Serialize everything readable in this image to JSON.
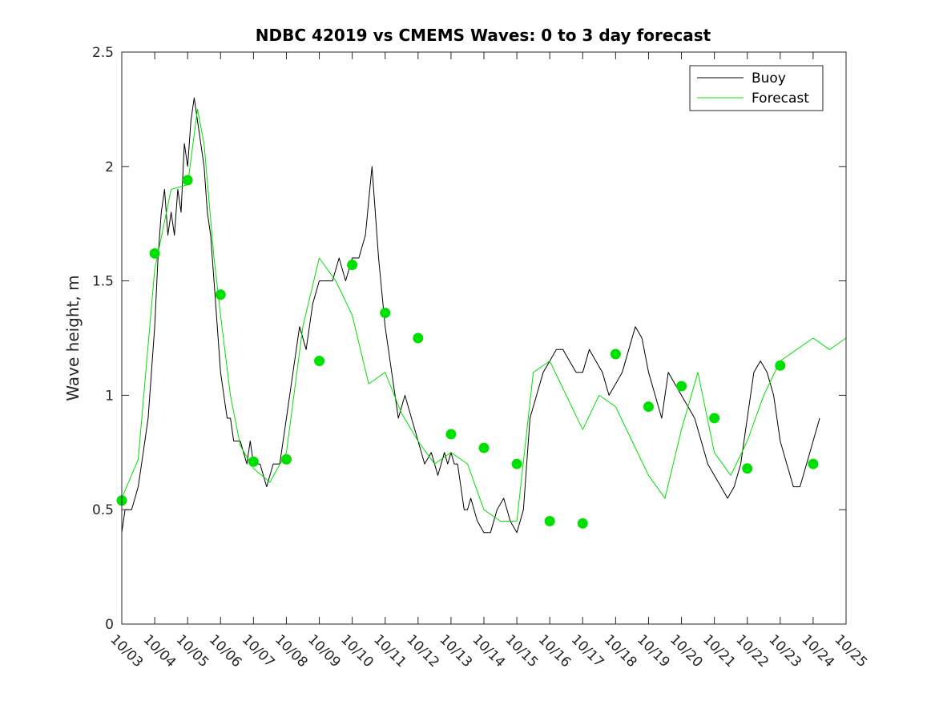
{
  "chart_data": {
    "type": "line",
    "title": "NDBC 42019 vs CMEMS Waves: 0 to 3 day forecast",
    "xlabel": "",
    "ylabel": "Wave height, m",
    "x_tick_labels": [
      "10/03",
      "10/04",
      "10/05",
      "10/06",
      "10/07",
      "10/08",
      "10/09",
      "10/10",
      "10/11",
      "10/12",
      "10/13",
      "10/14",
      "10/15",
      "10/16",
      "10/17",
      "10/18",
      "10/19",
      "10/20",
      "10/21",
      "10/22",
      "10/23",
      "10/24",
      "10/25"
    ],
    "xlim": [
      0,
      22
    ],
    "ylim": [
      0,
      2.5
    ],
    "y_ticks": [
      0,
      0.5,
      1,
      1.5,
      2,
      2.5
    ],
    "y_tick_labels": [
      "0",
      "0.5",
      "1",
      "1.5",
      "2",
      "2.5"
    ],
    "grid": false,
    "legend_placement": "top-right",
    "series": [
      {
        "name": "Buoy",
        "color": "#000000",
        "x": [
          0,
          0.1,
          0.2,
          0.3,
          0.5,
          0.6,
          0.7,
          0.8,
          0.9,
          1.0,
          1.1,
          1.2,
          1.3,
          1.4,
          1.5,
          1.6,
          1.7,
          1.8,
          1.9,
          2.0,
          2.1,
          2.2,
          2.3,
          2.4,
          2.5,
          2.6,
          2.7,
          2.8,
          2.9,
          3.0,
          3.1,
          3.2,
          3.3,
          3.4,
          3.5,
          3.6,
          3.7,
          3.8,
          3.9,
          4.0,
          4.2,
          4.4,
          4.6,
          4.8,
          5.0,
          5.2,
          5.4,
          5.6,
          5.8,
          6.0,
          6.2,
          6.4,
          6.6,
          6.8,
          7.0,
          7.2,
          7.4,
          7.6,
          7.8,
          8.0,
          8.2,
          8.4,
          8.6,
          8.8,
          9.0,
          9.2,
          9.4,
          9.6,
          9.7,
          9.8,
          9.9,
          10.0,
          10.1,
          10.2,
          10.3,
          10.4,
          10.5,
          10.6,
          10.8,
          11.0,
          11.2,
          11.4,
          11.6,
          11.8,
          12.0,
          12.2,
          12.4,
          12.6,
          12.8,
          13.0,
          13.2,
          13.4,
          13.6,
          13.8,
          14.0,
          14.2,
          14.4,
          14.6,
          14.8,
          15.0,
          15.2,
          15.4,
          15.6,
          15.8,
          16.0,
          16.2,
          16.4,
          16.6,
          16.8,
          17.0,
          17.2,
          17.4,
          17.6,
          17.8,
          18.0,
          18.2,
          18.4,
          18.6,
          18.8,
          19.0,
          19.2,
          19.4,
          19.6,
          19.8,
          20.0,
          20.2,
          20.4,
          20.6,
          20.8,
          21.0,
          21.2
        ],
        "y": [
          0.4,
          0.5,
          0.5,
          0.5,
          0.6,
          0.7,
          0.8,
          0.9,
          1.1,
          1.3,
          1.6,
          1.8,
          1.9,
          1.7,
          1.8,
          1.7,
          1.9,
          1.8,
          2.1,
          2.0,
          2.2,
          2.3,
          2.2,
          2.1,
          2.0,
          1.8,
          1.7,
          1.5,
          1.3,
          1.1,
          1.0,
          0.9,
          0.9,
          0.8,
          0.8,
          0.8,
          0.75,
          0.7,
          0.8,
          0.7,
          0.7,
          0.6,
          0.7,
          0.7,
          0.9,
          1.1,
          1.3,
          1.2,
          1.4,
          1.5,
          1.5,
          1.5,
          1.6,
          1.5,
          1.6,
          1.6,
          1.7,
          2.0,
          1.6,
          1.3,
          1.1,
          0.9,
          1.0,
          0.9,
          0.8,
          0.7,
          0.75,
          0.65,
          0.7,
          0.75,
          0.7,
          0.75,
          0.7,
          0.7,
          0.6,
          0.5,
          0.5,
          0.55,
          0.45,
          0.4,
          0.4,
          0.5,
          0.55,
          0.45,
          0.4,
          0.5,
          0.9,
          1.0,
          1.1,
          1.15,
          1.2,
          1.2,
          1.15,
          1.1,
          1.1,
          1.2,
          1.15,
          1.1,
          1.0,
          1.05,
          1.1,
          1.2,
          1.3,
          1.25,
          1.1,
          1.0,
          0.9,
          1.1,
          1.05,
          1.0,
          0.95,
          0.9,
          0.8,
          0.7,
          0.65,
          0.6,
          0.55,
          0.6,
          0.7,
          0.9,
          1.1,
          1.15,
          1.1,
          1.0,
          0.8,
          0.7,
          0.6,
          0.6,
          0.7,
          0.8,
          0.9
        ]
      },
      {
        "name": "Forecast",
        "color": "#00e000",
        "x": [
          0,
          0.5,
          1.0,
          1.5,
          2.0,
          2.3,
          2.5,
          2.8,
          3.0,
          3.3,
          3.6,
          4.0,
          4.5,
          5.0,
          5.5,
          6.0,
          6.5,
          7.0,
          7.5,
          8.0,
          8.5,
          9.0,
          9.5,
          10.0,
          10.5,
          11.0,
          11.5,
          12.0,
          12.5,
          13.0,
          13.5,
          14.0,
          14.5,
          15.0,
          15.5,
          16.0,
          16.5,
          17.0,
          17.5,
          18.0,
          18.5,
          19.0,
          19.5,
          20.0,
          20.5,
          21.0,
          21.5,
          22.0
        ],
        "y": [
          0.55,
          0.72,
          1.55,
          1.9,
          1.92,
          2.25,
          2.1,
          1.6,
          1.35,
          1.0,
          0.78,
          0.68,
          0.62,
          0.75,
          1.3,
          1.6,
          1.5,
          1.35,
          1.05,
          1.1,
          0.92,
          0.8,
          0.7,
          0.75,
          0.7,
          0.5,
          0.45,
          0.45,
          1.1,
          1.15,
          1.0,
          0.85,
          1.0,
          0.95,
          0.8,
          0.65,
          0.55,
          0.85,
          1.1,
          0.75,
          0.65,
          0.8,
          1.0,
          1.15,
          1.2,
          1.25,
          1.2,
          1.25
        ]
      }
    ],
    "marker_points": {
      "color": "#00e000",
      "x": [
        0,
        1,
        2,
        3,
        4,
        5,
        6,
        7,
        8,
        9,
        10,
        11,
        12,
        13,
        14,
        15,
        16,
        17,
        18,
        19,
        20,
        21
      ],
      "y": [
        0.54,
        1.62,
        1.94,
        1.44,
        0.71,
        0.72,
        1.15,
        1.57,
        1.36,
        1.25,
        0.83,
        0.77,
        0.7,
        0.45,
        0.44,
        1.18,
        0.95,
        1.04,
        0.9,
        0.68,
        1.13,
        0.7
      ]
    },
    "legend": [
      "Buoy",
      "Forecast"
    ]
  }
}
